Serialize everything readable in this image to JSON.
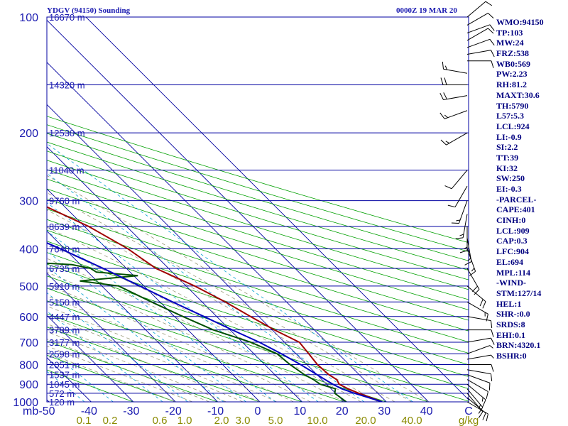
{
  "header": {
    "station": "YDGV (94150) Sounding",
    "time": "0000Z 19 MAR 20"
  },
  "indices": [
    "WMO:94150",
    "TP:103",
    "MW:24",
    "FRZ:538",
    "WB0:569",
    "PW:2.23",
    "RH:81.2",
    "MAXT:30.6",
    "TH:5790",
    "L57:5.3",
    "LCL:924",
    "LI:-0.9",
    "SI:2.2",
    "TT:39",
    "KI:32",
    "SW:250",
    "EI:-0.3",
    "-PARCEL-",
    "CAPE:401",
    "CINH:0",
    "LCL:909",
    "CAP:0.3",
    "LFC:904",
    "EL:694",
    "MPL:114",
    "-WIND-",
    "STM:127/14",
    "HEL:1",
    "SHR-:0.0",
    "SRDS:8",
    "EHI:0.1",
    "BRN:4320.1",
    "BSHR:0"
  ],
  "colors": {
    "isobar": "#0000a0",
    "isotherm": "#0000a0",
    "dry_adiabat": "#00a000",
    "moist_adiabat": "#9a9a7a",
    "mixing_ratio": "#00a0d0",
    "temperature": "#a00000",
    "dewpoint": "#005000",
    "parcel": "#0000c0",
    "tick_text": "#1a1ab0",
    "mixing_text": "#8a8a00"
  },
  "chart_data": {
    "type": "line",
    "title": "YDGV (94150) Sounding",
    "xlabel": "",
    "ylabel": "mb",
    "pressure_ticks": [
      100,
      200,
      300,
      400,
      500,
      600,
      700,
      800,
      900,
      1000
    ],
    "pressure_tick_labels": [
      "100",
      "200",
      "300",
      "400",
      "500",
      "600",
      "700",
      "800",
      "900",
      "1000"
    ],
    "temp_tick_labels": [
      "-50",
      "-40",
      "-30",
      "-20",
      "-10",
      "0",
      "10",
      "20",
      "30",
      "40",
      "C"
    ],
    "mixing_ratio_labels": [
      "0.1",
      "0.2",
      "0.6",
      "1.0",
      "2.0",
      "3.0",
      "5.0",
      "10.0",
      "20.0",
      "40.0",
      "g/kg"
    ],
    "xlim": [
      -50,
      50
    ],
    "ylim": [
      1000,
      100
    ],
    "heights": [
      {
        "p": 100,
        "label": "16670 m"
      },
      {
        "p": 150,
        "label": "14320 m"
      },
      {
        "p": 200,
        "label": "12530 m"
      },
      {
        "p": 250,
        "label": "11040 m"
      },
      {
        "p": 300,
        "label": "9760 m"
      },
      {
        "p": 350,
        "label": "8639 m"
      },
      {
        "p": 400,
        "label": "7640 m"
      },
      {
        "p": 450,
        "label": "6735 m"
      },
      {
        "p": 500,
        "label": "5910 m"
      },
      {
        "p": 550,
        "label": "5150 m"
      },
      {
        "p": 600,
        "label": "4447 m"
      },
      {
        "p": 650,
        "label": "3789 m"
      },
      {
        "p": 700,
        "label": "3177 m"
      },
      {
        "p": 750,
        "label": "2598 m"
      },
      {
        "p": 800,
        "label": "2051 m"
      },
      {
        "p": 850,
        "label": "1537 m"
      },
      {
        "p": 900,
        "label": "1045 m"
      },
      {
        "p": 950,
        "label": "572 m"
      },
      {
        "p": 1000,
        "label": "120 m"
      }
    ],
    "series": [
      {
        "points": [
          [
            1000,
            29
          ],
          [
            950,
            25.5
          ],
          [
            925,
            24
          ],
          [
            900,
            23
          ],
          [
            875,
            23.5
          ],
          [
            850,
            22.8
          ],
          [
            800,
            22.5
          ],
          [
            750,
            23
          ],
          [
            700,
            23.5
          ],
          [
            650,
            20.5
          ],
          [
            600,
            18
          ],
          [
            550,
            15.5
          ],
          [
            500,
            12
          ],
          [
            450,
            7
          ],
          [
            425,
            6
          ],
          [
            400,
            5
          ],
          [
            350,
            1
          ],
          [
            300,
            -6
          ],
          [
            250,
            -15
          ],
          [
            200,
            -27
          ],
          [
            175,
            -35
          ],
          [
            150,
            -45
          ],
          [
            125,
            -57
          ],
          [
            110,
            -65
          ],
          [
            100,
            -71
          ]
        ]
      },
      {
        "points": [
          [
            1000,
            20.5
          ],
          [
            950,
            19.8
          ],
          [
            925,
            21
          ],
          [
            900,
            18.5
          ],
          [
            875,
            18
          ],
          [
            850,
            17
          ],
          [
            800,
            16
          ],
          [
            750,
            15.5
          ],
          [
            700,
            12
          ],
          [
            650,
            6
          ],
          [
            600,
            2
          ],
          [
            550,
            -2
          ],
          [
            500,
            -6
          ],
          [
            485,
            -14
          ],
          [
            470,
            1
          ],
          [
            460,
            -8
          ],
          [
            450,
            -8.5
          ],
          [
            440,
            -12
          ],
          [
            425,
            -34
          ],
          [
            400,
            -35
          ],
          [
            350,
            -38
          ],
          [
            300,
            -43
          ],
          [
            250,
            -46
          ],
          [
            200,
            -53
          ],
          [
            175,
            -56
          ],
          [
            150,
            -57
          ],
          [
            140,
            -55
          ],
          [
            120,
            -69
          ],
          [
            100,
            -81
          ]
        ]
      },
      {
        "points": [
          [
            1000,
            29
          ],
          [
            950,
            24.5
          ],
          [
            925,
            22.5
          ],
          [
            900,
            21.5
          ],
          [
            850,
            20
          ],
          [
            800,
            18.5
          ],
          [
            750,
            16.5
          ],
          [
            700,
            14
          ],
          [
            650,
            10.5
          ],
          [
            600,
            7
          ],
          [
            550,
            3
          ],
          [
            500,
            -1
          ],
          [
            450,
            -5.5
          ],
          [
            400,
            -11
          ],
          [
            350,
            -18
          ],
          [
            300,
            -25
          ],
          [
            250,
            -35
          ],
          [
            200,
            -45
          ],
          [
            150,
            -58
          ],
          [
            125,
            -67
          ],
          [
            110,
            -75
          ]
        ]
      }
    ],
    "wind_barbs": [
      {
        "p": 1000,
        "dir": 120,
        "spd": 10
      },
      {
        "p": 975,
        "dir": 130,
        "spd": 10
      },
      {
        "p": 950,
        "dir": 140,
        "spd": 10
      },
      {
        "p": 925,
        "dir": 140,
        "spd": 15
      },
      {
        "p": 900,
        "dir": 130,
        "spd": 15
      },
      {
        "p": 875,
        "dir": 120,
        "spd": 10
      },
      {
        "p": 850,
        "dir": 110,
        "spd": 10
      },
      {
        "p": 825,
        "dir": 100,
        "spd": 10
      },
      {
        "p": 800,
        "dir": 90,
        "spd": 10
      },
      {
        "p": 775,
        "dir": 80,
        "spd": 5
      },
      {
        "p": 750,
        "dir": 70,
        "spd": 5
      },
      {
        "p": 700,
        "dir": 80,
        "spd": 10
      },
      {
        "p": 650,
        "dir": 90,
        "spd": 10
      },
      {
        "p": 600,
        "dir": 100,
        "spd": 10
      },
      {
        "p": 550,
        "dir": 120,
        "spd": 15
      },
      {
        "p": 500,
        "dir": 130,
        "spd": 20
      },
      {
        "p": 450,
        "dir": 150,
        "spd": 20
      },
      {
        "p": 400,
        "dir": 160,
        "spd": 15
      },
      {
        "p": 375,
        "dir": 170,
        "spd": 15
      },
      {
        "p": 350,
        "dir": 180,
        "spd": 15
      },
      {
        "p": 325,
        "dir": 190,
        "spd": 15
      },
      {
        "p": 300,
        "dir": 200,
        "spd": 15
      },
      {
        "p": 275,
        "dir": 210,
        "spd": 10
      },
      {
        "p": 250,
        "dir": 220,
        "spd": 10
      },
      {
        "p": 200,
        "dir": 240,
        "spd": 15
      },
      {
        "p": 175,
        "dir": 250,
        "spd": 15
      },
      {
        "p": 160,
        "dir": 260,
        "spd": 20
      },
      {
        "p": 150,
        "dir": 270,
        "spd": 20
      },
      {
        "p": 140,
        "dir": 280,
        "spd": 15
      },
      {
        "p": 130,
        "dir": 90,
        "spd": 10
      },
      {
        "p": 125,
        "dir": 80,
        "spd": 10
      },
      {
        "p": 120,
        "dir": 70,
        "spd": 10
      },
      {
        "p": 115,
        "dir": 60,
        "spd": 10
      },
      {
        "p": 110,
        "dir": 70,
        "spd": 10
      },
      {
        "p": 105,
        "dir": 60,
        "spd": 10
      },
      {
        "p": 100,
        "dir": 50,
        "spd": 10
      }
    ]
  }
}
